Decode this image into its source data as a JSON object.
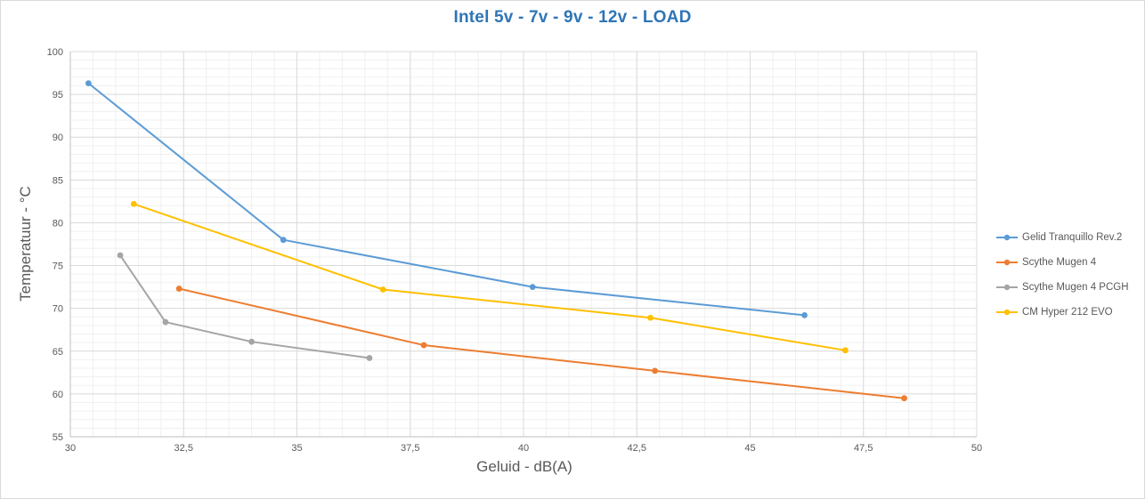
{
  "chart_data": {
    "type": "line",
    "title": "Intel 5v - 7v - 9v - 12v - LOAD",
    "xlabel": "Geluid - dB(A)",
    "ylabel": "Temperatuur - °C",
    "xlim": [
      30,
      50
    ],
    "ylim": [
      55,
      100
    ],
    "grid": "major+minor",
    "legend_position": "right",
    "x_major_ticks": [
      30,
      32.5,
      35,
      37.5,
      40,
      42.5,
      45,
      47.5,
      50
    ],
    "x_tick_labels": [
      "30",
      "32,5",
      "35",
      "37,5",
      "40",
      "42,5",
      "45",
      "47,5",
      "50"
    ],
    "x_minor_step": 0.5,
    "y_major_ticks": [
      55,
      60,
      65,
      70,
      75,
      80,
      85,
      90,
      95,
      100
    ],
    "y_tick_labels": [
      "55",
      "60",
      "65",
      "70",
      "75",
      "80",
      "85",
      "90",
      "95",
      "100"
    ],
    "y_minor_step": 1,
    "series": [
      {
        "name": "Gelid Tranquillo Rev.2",
        "color": "#5B9BD5",
        "points": [
          [
            30.4,
            96.3
          ],
          [
            34.7,
            78.0
          ],
          [
            40.2,
            72.5
          ],
          [
            46.2,
            69.2
          ]
        ]
      },
      {
        "name": "Scythe Mugen 4",
        "color": "#ED7D31",
        "points": [
          [
            32.4,
            72.3
          ],
          [
            37.8,
            65.7
          ],
          [
            42.9,
            62.7
          ],
          [
            48.4,
            59.5
          ]
        ]
      },
      {
        "name": "Scythe Mugen 4 PCGH",
        "color": "#A5A5A5",
        "points": [
          [
            31.1,
            76.2
          ],
          [
            32.1,
            68.4
          ],
          [
            34.0,
            66.1
          ],
          [
            36.6,
            64.2
          ]
        ]
      },
      {
        "name": "CM Hyper 212 EVO",
        "color": "#FFC000",
        "points": [
          [
            31.4,
            82.2
          ],
          [
            36.9,
            72.2
          ],
          [
            42.8,
            68.9
          ],
          [
            47.1,
            65.1
          ]
        ]
      }
    ]
  },
  "colors": {
    "title": "#2E75B6",
    "axis_text": "#595959",
    "axis_line": "#BFBFBF",
    "grid_major": "#DBDBDB",
    "grid_minor": "#F0F0F0",
    "background": "#FFFFFF"
  }
}
